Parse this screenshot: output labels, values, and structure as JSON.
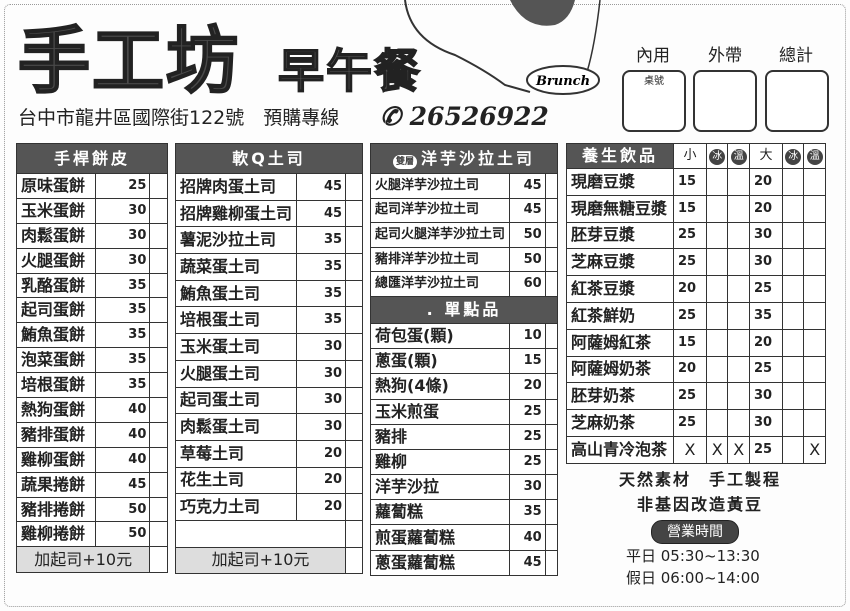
{
  "header": {
    "logo": "手工坊",
    "subtitle": "早午餐",
    "brunch_tag": "Brunch",
    "address": "台中市龍井區國際街122號",
    "preorder_label": "預購專線",
    "phone": "26526922",
    "boxes": [
      {
        "label": "內用",
        "note": "桌號"
      },
      {
        "label": "外帶",
        "note": ""
      },
      {
        "label": "總計",
        "note": ""
      }
    ]
  },
  "col1": {
    "title": "手桿餅皮",
    "items": [
      [
        "原味蛋餅",
        "25"
      ],
      [
        "玉米蛋餅",
        "30"
      ],
      [
        "肉鬆蛋餅",
        "30"
      ],
      [
        "火腿蛋餅",
        "30"
      ],
      [
        "乳酪蛋餅",
        "35"
      ],
      [
        "起司蛋餅",
        "35"
      ],
      [
        "鮪魚蛋餅",
        "35"
      ],
      [
        "泡菜蛋餅",
        "35"
      ],
      [
        "培根蛋餅",
        "35"
      ],
      [
        "熱狗蛋餅",
        "40"
      ],
      [
        "豬排蛋餅",
        "40"
      ],
      [
        "雞柳蛋餅",
        "40"
      ],
      [
        "蔬果捲餅",
        "45"
      ],
      [
        "豬排捲餅",
        "50"
      ],
      [
        "雞柳捲餅",
        "50"
      ]
    ],
    "extra": "加起司+10元"
  },
  "col2": {
    "title": "軟Q土司",
    "items": [
      [
        "招牌肉蛋土司",
        "45"
      ],
      [
        "招牌雞柳蛋土司",
        "45"
      ],
      [
        "薯泥沙拉土司",
        "35"
      ],
      [
        "蔬菜蛋土司",
        "35"
      ],
      [
        "鮪魚蛋土司",
        "35"
      ],
      [
        "培根蛋土司",
        "35"
      ],
      [
        "玉米蛋土司",
        "30"
      ],
      [
        "火腿蛋土司",
        "30"
      ],
      [
        "起司蛋土司",
        "30"
      ],
      [
        "肉鬆蛋土司",
        "30"
      ],
      [
        "草莓土司",
        "20"
      ],
      [
        "花生土司",
        "20"
      ],
      [
        "巧克力土司",
        "20"
      ]
    ],
    "extra": "加起司+10元"
  },
  "col3": {
    "badge": "雙層",
    "title": "洋芋沙拉土司",
    "items": [
      [
        "火腿洋芋沙拉土司",
        "45"
      ],
      [
        "起司洋芋沙拉土司",
        "45"
      ],
      [
        "起司火腿洋芋沙拉土司",
        "50"
      ],
      [
        "豬排洋芋沙拉土司",
        "50"
      ],
      [
        "總匯洋芋沙拉土司",
        "60"
      ]
    ],
    "sub_title": ". 單點品",
    "sub_items": [
      [
        "荷包蛋(顆)",
        "10"
      ],
      [
        "蔥蛋(顆)",
        "15"
      ],
      [
        "熱狗(4條)",
        "20"
      ],
      [
        "玉米煎蛋",
        "25"
      ],
      [
        "豬排",
        "25"
      ],
      [
        "雞柳",
        "25"
      ],
      [
        "洋芋沙拉",
        "30"
      ],
      [
        "蘿蔔糕",
        "35"
      ],
      [
        "煎蛋蘿蔔糕",
        "40"
      ],
      [
        "蔥蛋蘿蔔糕",
        "45"
      ]
    ]
  },
  "drinks": {
    "title": "養生飲品",
    "heads": [
      "小",
      "冰",
      "溫",
      "大",
      "冰",
      "溫"
    ],
    "items": [
      [
        "現磨豆漿",
        "15",
        "",
        "",
        "20",
        "",
        ""
      ],
      [
        "現磨無糖豆漿",
        "15",
        "",
        "",
        "20",
        "",
        ""
      ],
      [
        "胚芽豆漿",
        "25",
        "",
        "",
        "30",
        "",
        ""
      ],
      [
        "芝麻豆漿",
        "25",
        "",
        "",
        "30",
        "",
        ""
      ],
      [
        "紅茶豆漿",
        "20",
        "",
        "",
        "25",
        "",
        ""
      ],
      [
        "紅茶鮮奶",
        "25",
        "",
        "",
        "35",
        "",
        ""
      ],
      [
        "阿薩姆紅茶",
        "15",
        "",
        "",
        "20",
        "",
        ""
      ],
      [
        "阿薩姆奶茶",
        "20",
        "",
        "",
        "25",
        "",
        ""
      ],
      [
        "胚芽奶茶",
        "25",
        "",
        "",
        "30",
        "",
        ""
      ],
      [
        "芝麻奶茶",
        "25",
        "",
        "",
        "30",
        "",
        ""
      ],
      [
        "高山青冷泡茶",
        "X",
        "X",
        "X",
        "25",
        "",
        "X"
      ]
    ]
  },
  "footer": {
    "slogan1": "天然素材　手工製程",
    "slogan2": "非基因改造黃豆",
    "hours_title": "營業時間",
    "weekday": "平日 05:30~13:30",
    "holiday": "假日 06:00~14:00"
  }
}
